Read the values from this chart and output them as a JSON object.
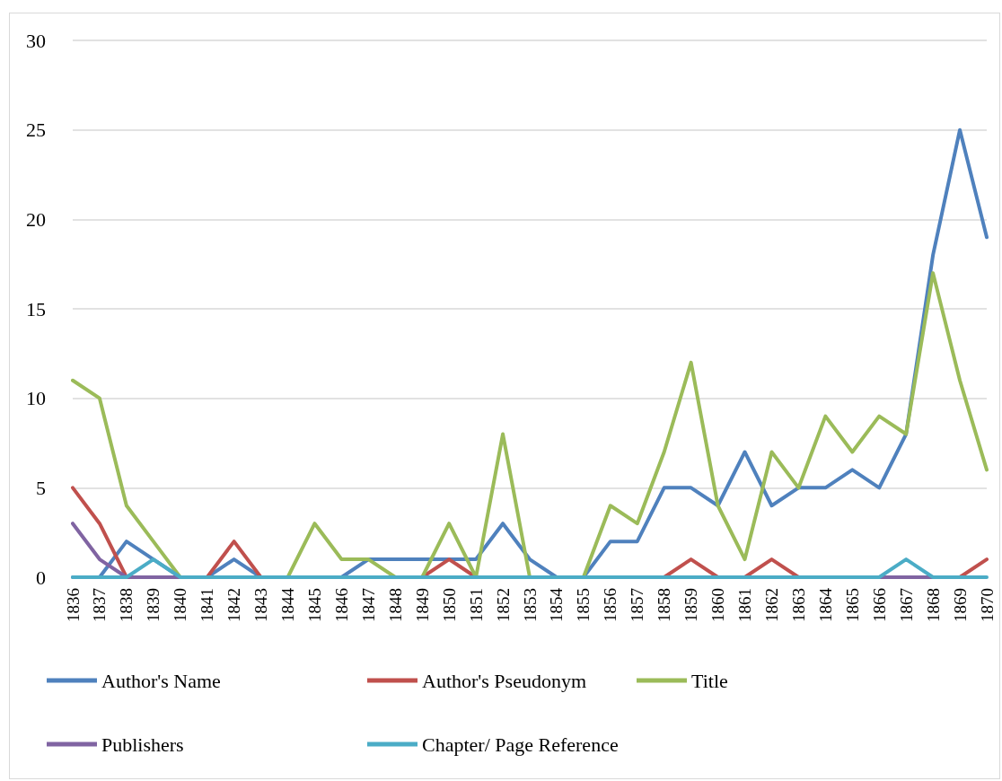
{
  "chart_data": {
    "type": "line",
    "categories": [
      "1836",
      "1837",
      "1838",
      "1839",
      "1840",
      "1841",
      "1842",
      "1843",
      "1844",
      "1845",
      "1846",
      "1847",
      "1848",
      "1849",
      "1850",
      "1851",
      "1852",
      "1853",
      "1854",
      "1855",
      "1856",
      "1857",
      "1858",
      "1859",
      "1860",
      "1861",
      "1862",
      "1863",
      "1864",
      "1865",
      "1866",
      "1867",
      "1868",
      "1869",
      "1870"
    ],
    "series": [
      {
        "name": "Author's Name",
        "color": "#4f81bd",
        "values": [
          0,
          0,
          2,
          1,
          0,
          0,
          1,
          0,
          0,
          0,
          0,
          1,
          1,
          1,
          1,
          1,
          3,
          1,
          0,
          0,
          2,
          2,
          5,
          5,
          4,
          7,
          4,
          5,
          5,
          6,
          5,
          8,
          18,
          25,
          19
        ]
      },
      {
        "name": "Author's Pseudonym",
        "color": "#c0504d",
        "values": [
          5,
          3,
          0,
          null,
          null,
          0,
          2,
          0,
          null,
          null,
          null,
          null,
          null,
          0,
          1,
          0,
          null,
          null,
          null,
          null,
          null,
          null,
          0,
          1,
          0,
          0,
          1,
          0,
          null,
          null,
          null,
          null,
          null,
          0,
          1
        ]
      },
      {
        "name": "Title",
        "color": "#9bbb59",
        "values": [
          11,
          10,
          4,
          2,
          0,
          0,
          0,
          0,
          0,
          3,
          1,
          1,
          0,
          0,
          3,
          0,
          8,
          0,
          0,
          0,
          4,
          3,
          7,
          12,
          4,
          1,
          7,
          5,
          9,
          7,
          9,
          8,
          17,
          11,
          6
        ]
      },
      {
        "name": "Publishers",
        "color": "#8064a2",
        "values": [
          3,
          1,
          0,
          0,
          0,
          0,
          null,
          null,
          null,
          null,
          null,
          null,
          null,
          null,
          null,
          null,
          null,
          null,
          0,
          0,
          null,
          null,
          null,
          null,
          null,
          null,
          null,
          null,
          null,
          null,
          0,
          0,
          0,
          null,
          null
        ]
      },
      {
        "name": "Chapter/ Page Reference",
        "color": "#4bacc6",
        "values": [
          0,
          0,
          0,
          1,
          0,
          0,
          0,
          0,
          0,
          0,
          0,
          0,
          0,
          0,
          0,
          0,
          0,
          0,
          0,
          0,
          0,
          0,
          0,
          0,
          0,
          0,
          0,
          0,
          0,
          0,
          0,
          1,
          0,
          0,
          0
        ]
      }
    ],
    "ylim": [
      0,
      30
    ],
    "yticks": [
      0,
      5,
      10,
      15,
      20,
      25,
      30
    ],
    "grid": "y",
    "legend": "bottom",
    "marker": "none",
    "line_style": "solid"
  }
}
